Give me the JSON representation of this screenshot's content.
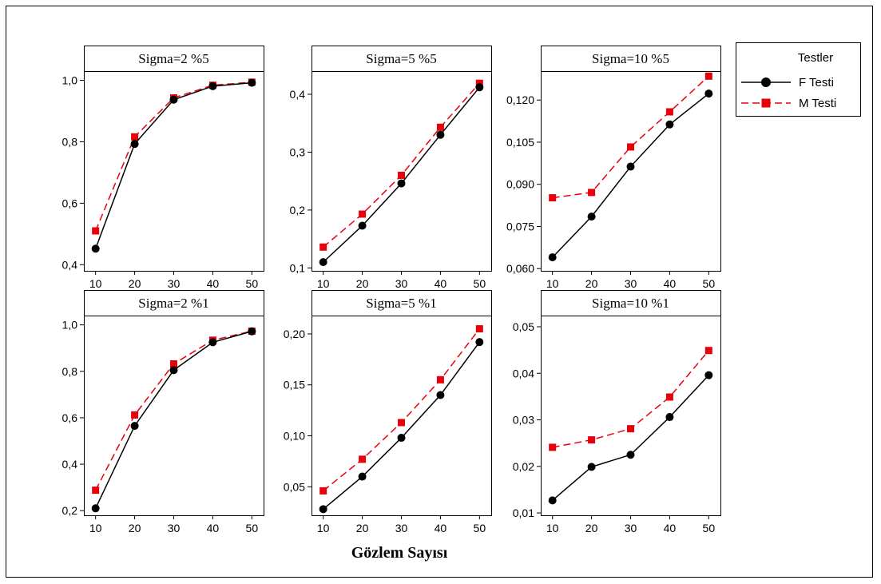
{
  "chart_data": {
    "type": "line",
    "xlabel": "Gözlem Sayısı",
    "ylabel": "",
    "x": [
      10,
      20,
      30,
      40,
      50
    ],
    "x_tick_labels": [
      "10",
      "20",
      "30",
      "40",
      "50"
    ],
    "legend": {
      "title": "Testler",
      "placement": "right",
      "entries": [
        {
          "name": "F Testi",
          "color": "#000000",
          "marker": "circle",
          "line": "solid"
        },
        {
          "name": "M Testi",
          "color": "#e8000b",
          "marker": "square",
          "line": "dashed"
        }
      ]
    },
    "panels": [
      {
        "title": "Sigma=2 %5",
        "ylim": [
          0.38,
          1.03
        ],
        "yticks": [
          0.4,
          0.6,
          0.8,
          1.0
        ],
        "ytick_labels": [
          "0,4",
          "0,6",
          "0,8",
          "1,0"
        ],
        "series": [
          {
            "name": "F Testi",
            "values": [
              0.452,
              0.793,
              0.937,
              0.981,
              0.992
            ]
          },
          {
            "name": "M Testi",
            "values": [
              0.51,
              0.816,
              0.943,
              0.984,
              0.994
            ]
          }
        ]
      },
      {
        "title": "Sigma=5 %5",
        "ylim": [
          0.095,
          0.44
        ],
        "yticks": [
          0.1,
          0.2,
          0.3,
          0.4
        ],
        "ytick_labels": [
          "0,1",
          "0,2",
          "0,3",
          "0,4"
        ],
        "series": [
          {
            "name": "F Testi",
            "values": [
              0.11,
              0.173,
              0.246,
              0.33,
              0.412
            ]
          },
          {
            "name": "M Testi",
            "values": [
              0.136,
              0.193,
              0.26,
              0.343,
              0.419
            ]
          }
        ]
      },
      {
        "title": "Sigma=10 %5",
        "ylim": [
          0.0592,
          0.1303
        ],
        "yticks": [
          0.06,
          0.075,
          0.09,
          0.105,
          0.12
        ],
        "ytick_labels": [
          "0,060",
          "0,075",
          "0,090",
          "0,105",
          "0,120"
        ],
        "series": [
          {
            "name": "F Testi",
            "values": [
              0.064,
              0.0785,
              0.0963,
              0.1113,
              0.1223
            ]
          },
          {
            "name": "M Testi",
            "values": [
              0.0852,
              0.0871,
              0.1033,
              0.1158,
              0.1285
            ]
          }
        ]
      },
      {
        "title": "Sigma=2 %1",
        "ylim": [
          0.18,
          1.04
        ],
        "yticks": [
          0.2,
          0.4,
          0.6,
          0.8,
          1.0
        ],
        "ytick_labels": [
          "0,2",
          "0,4",
          "0,6",
          "0,8",
          "1,0"
        ],
        "series": [
          {
            "name": "F Testi",
            "values": [
              0.21,
              0.565,
              0.805,
              0.925,
              0.972
            ]
          },
          {
            "name": "M Testi",
            "values": [
              0.288,
              0.612,
              0.832,
              0.934,
              0.973
            ]
          }
        ]
      },
      {
        "title": "Sigma=5 %1",
        "ylim": [
          0.022,
          0.218
        ],
        "yticks": [
          0.05,
          0.1,
          0.15,
          0.2
        ],
        "ytick_labels": [
          "0,05",
          "0,10",
          "0,15",
          "0,20"
        ],
        "series": [
          {
            "name": "F Testi",
            "values": [
              0.028,
              0.06,
              0.098,
              0.14,
              0.192
            ]
          },
          {
            "name": "M Testi",
            "values": [
              0.046,
              0.077,
              0.113,
              0.155,
              0.205
            ]
          }
        ]
      },
      {
        "title": "Sigma=10 %1",
        "ylim": [
          0.0095,
          0.0524
        ],
        "yticks": [
          0.01,
          0.02,
          0.03,
          0.04,
          0.05
        ],
        "ytick_labels": [
          "0,01",
          "0,02",
          "0,03",
          "0,04",
          "0,05"
        ],
        "series": [
          {
            "name": "F Testi",
            "values": [
              0.0127,
              0.0199,
              0.0225,
              0.0306,
              0.0396
            ]
          },
          {
            "name": "M Testi",
            "values": [
              0.0241,
              0.0257,
              0.0281,
              0.0349,
              0.0449
            ]
          }
        ]
      }
    ]
  }
}
